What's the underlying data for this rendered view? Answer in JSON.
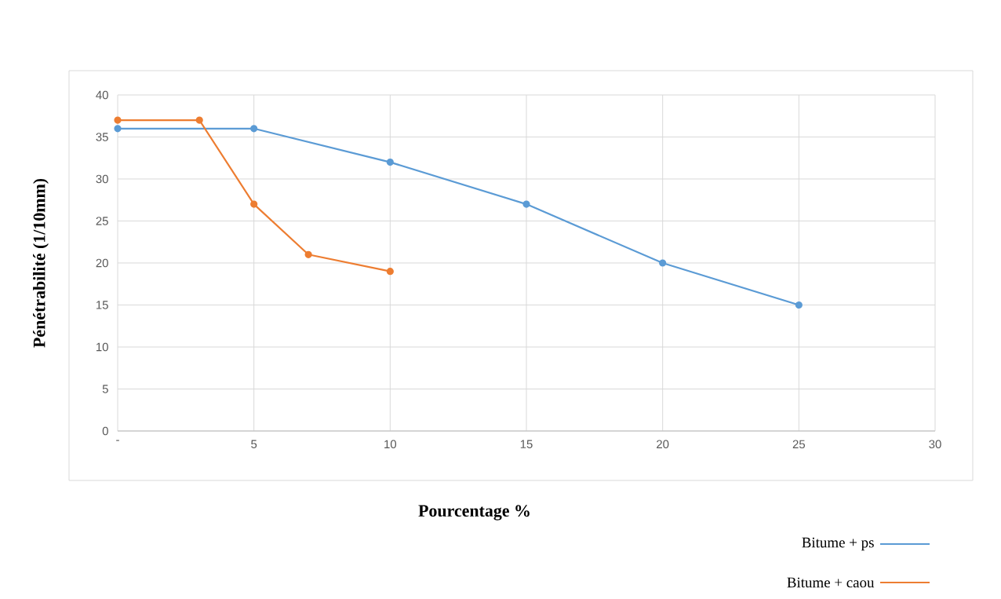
{
  "chart_data": {
    "type": "line",
    "xlabel": "Pourcentage %",
    "ylabel": "Pénétrabilité (1/10mm)",
    "xlim": [
      0,
      30
    ],
    "ylim": [
      0,
      40
    ],
    "xticks": [
      {
        "value": 0,
        "label": "-"
      },
      5,
      10,
      15,
      20,
      25,
      30
    ],
    "yticks": [
      0,
      5,
      10,
      15,
      20,
      25,
      30,
      35,
      40
    ],
    "grid": true,
    "legend": "bottom right",
    "marker": "circle",
    "line_style": "solid",
    "series": [
      {
        "name": "Bitume + ps",
        "color": "#5b9bd5",
        "x": [
          0,
          5,
          10,
          15,
          20,
          25
        ],
        "values": [
          36,
          36,
          32,
          27,
          20,
          15
        ]
      },
      {
        "name": "Bitume + caou",
        "color": "#ed7d31",
        "x": [
          0,
          3,
          5,
          7,
          10
        ],
        "values": [
          37,
          37,
          27,
          21,
          19
        ]
      }
    ]
  }
}
